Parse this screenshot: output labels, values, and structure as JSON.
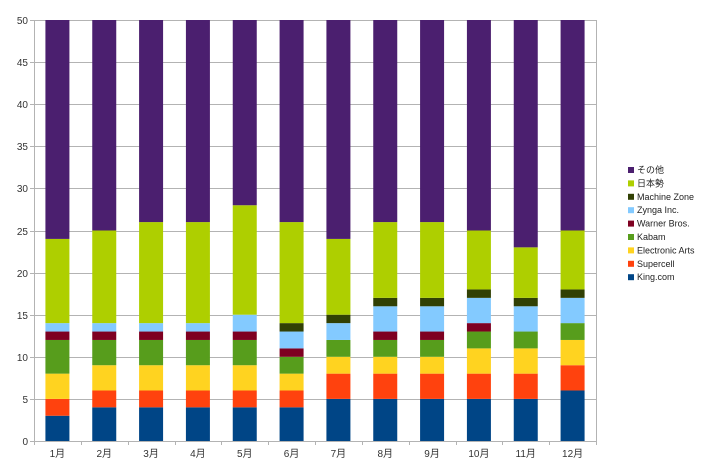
{
  "chart_data": {
    "type": "bar",
    "stacked": true,
    "title": "",
    "xlabel": "",
    "ylabel": "",
    "ylim": [
      0,
      50
    ],
    "yticks": [
      0,
      5,
      10,
      15,
      20,
      25,
      30,
      35,
      40,
      45,
      50
    ],
    "grid": true,
    "legend_position": "right",
    "categories": [
      "1月",
      "2月",
      "3月",
      "4月",
      "5月",
      "6月",
      "7月",
      "8月",
      "9月",
      "10月",
      "11月",
      "12月"
    ],
    "series": [
      {
        "name": "King.com",
        "color": "#004586",
        "values": [
          3,
          4,
          4,
          4,
          4,
          4,
          5,
          5,
          5,
          5,
          5,
          6
        ]
      },
      {
        "name": "Supercell",
        "color": "#FF420E",
        "values": [
          2,
          2,
          2,
          2,
          2,
          2,
          3,
          3,
          3,
          3,
          3,
          3
        ]
      },
      {
        "name": "Electronic Arts",
        "color": "#FFD320",
        "values": [
          3,
          3,
          3,
          3,
          3,
          2,
          2,
          2,
          2,
          3,
          3,
          3
        ]
      },
      {
        "name": "Kabam",
        "color": "#579D1C",
        "values": [
          4,
          3,
          3,
          3,
          3,
          2,
          2,
          2,
          2,
          2,
          2,
          2
        ]
      },
      {
        "name": "Warner Bros.",
        "color": "#7E0021",
        "values": [
          1,
          1,
          1,
          1,
          1,
          1,
          0,
          1,
          1,
          1,
          0,
          0
        ]
      },
      {
        "name": "Zynga Inc.",
        "color": "#83CAFF",
        "values": [
          1,
          1,
          1,
          1,
          2,
          2,
          2,
          3,
          3,
          3,
          3,
          3
        ]
      },
      {
        "name": "Machine Zone",
        "color": "#314004",
        "values": [
          0,
          0,
          0,
          0,
          0,
          1,
          1,
          1,
          1,
          1,
          1,
          1
        ]
      },
      {
        "name": "日本勢",
        "color": "#AECF00",
        "values": [
          10,
          11,
          12,
          12,
          13,
          12,
          9,
          9,
          9,
          7,
          6,
          7
        ]
      },
      {
        "name": "その他",
        "color": "#4B1F6F",
        "values": [
          26,
          25,
          24,
          24,
          22,
          24,
          26,
          24,
          24,
          25,
          27,
          25
        ]
      }
    ]
  }
}
